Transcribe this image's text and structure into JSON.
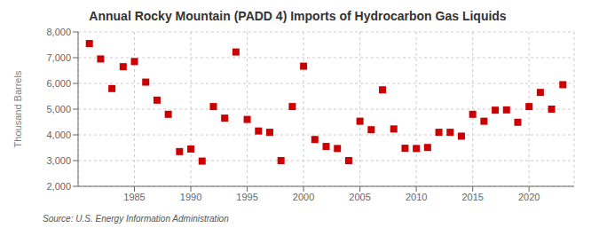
{
  "chart_data": {
    "type": "scatter",
    "title": "Annual Rocky Mountain (PADD 4) Imports of Hydrocarbon Gas Liquids",
    "y_label": "Thousand Barrels",
    "annotations": [
      "Source: U.S. Energy Information Administration"
    ],
    "x": [
      1981,
      1982,
      1983,
      1984,
      1985,
      1986,
      1987,
      1988,
      1989,
      1990,
      1991,
      1992,
      1993,
      1994,
      1995,
      1996,
      1997,
      1998,
      1999,
      2000,
      2001,
      2002,
      2003,
      2004,
      2005,
      2006,
      2007,
      2008,
      2009,
      2010,
      2011,
      2012,
      2013,
      2014,
      2015,
      2016,
      2017,
      2018,
      2019,
      2020,
      2021,
      2022,
      2023
    ],
    "values": [
      7550,
      6950,
      5800,
      6650,
      6850,
      6050,
      5350,
      4800,
      3350,
      3450,
      2980,
      5100,
      4650,
      7220,
      4600,
      4150,
      4100,
      3000,
      5100,
      6670,
      3820,
      3550,
      3470,
      3000,
      4530,
      4200,
      5750,
      4230,
      3480,
      3470,
      3510,
      4100,
      4100,
      3950,
      4800,
      4530,
      4960,
      4970,
      4490,
      5100,
      5650,
      5000,
      5950
    ],
    "color": "#cc0000",
    "marker": "square",
    "xlim": [
      1980,
      2024
    ],
    "xticks": [
      1985,
      1990,
      1995,
      2000,
      2005,
      2010,
      2015,
      2020
    ],
    "ylim": [
      2000,
      8000
    ],
    "yticks": [
      {
        "value": 2000,
        "label": "2,000"
      },
      {
        "value": 3000,
        "label": "3,000"
      },
      {
        "value": 4000,
        "label": "4,000"
      },
      {
        "value": 5000,
        "label": "5,000"
      },
      {
        "value": 6000,
        "label": "6,000"
      },
      {
        "value": 7000,
        "label": "7,000"
      },
      {
        "value": 8000,
        "label": "8,000"
      }
    ],
    "grid": true
  }
}
